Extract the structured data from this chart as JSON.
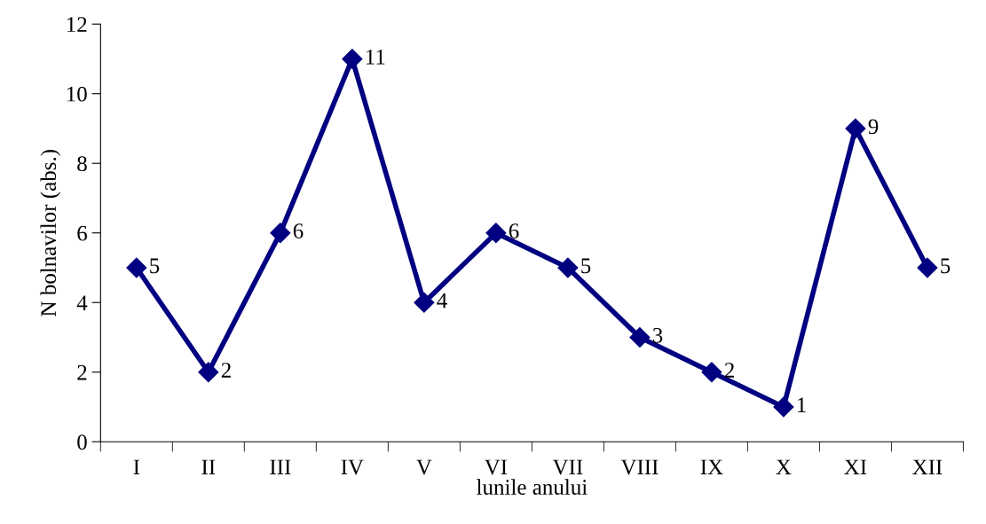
{
  "chart_data": {
    "type": "line",
    "xlabel": "lunile anului",
    "ylabel": "N bolnavilor (abs.)",
    "categories": [
      "I",
      "II",
      "III",
      "IV",
      "V",
      "VI",
      "VII",
      "VIII",
      "IX",
      "X",
      "XI",
      "XII"
    ],
    "series": [
      {
        "color": "#000080",
        "values": [
          5,
          2,
          6,
          11,
          4,
          6,
          5,
          3,
          2,
          1,
          9,
          5
        ]
      }
    ],
    "ylim": [
      0,
      12
    ],
    "yticks": [
      0,
      2,
      4,
      6,
      8,
      10,
      12
    ],
    "marker": "diamond",
    "line_style": "solid",
    "grid": false,
    "legend": false,
    "data_labels": true
  }
}
